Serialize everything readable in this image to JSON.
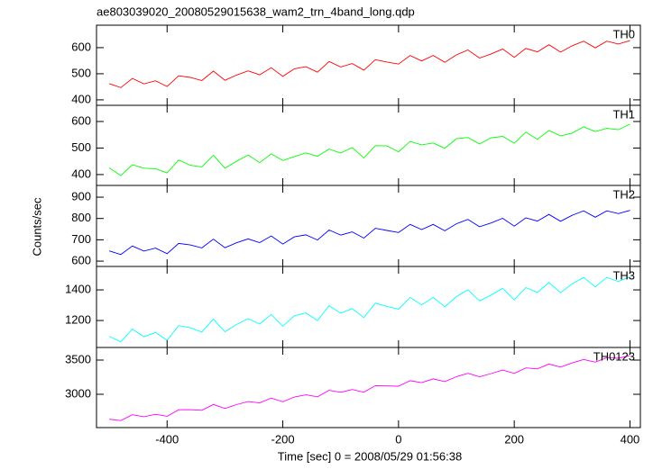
{
  "chart_data": [
    {
      "type": "line",
      "title": "ae803039020_20080529015638_wam2_trn_4band_long.qdp",
      "x": [
        -500,
        -480,
        -460,
        -440,
        -420,
        -400,
        -380,
        -360,
        -340,
        -320,
        -300,
        -280,
        -260,
        -240,
        -220,
        -200,
        -180,
        -160,
        -140,
        -120,
        -100,
        -80,
        -60,
        -40,
        -20,
        0,
        20,
        40,
        60,
        80,
        100,
        120,
        140,
        160,
        180,
        200,
        220,
        240,
        260,
        280,
        300,
        320,
        340,
        360,
        380,
        400
      ],
      "series": [
        {
          "name": "TH0",
          "color": "#ff0000",
          "values": [
            462,
            447,
            482,
            461,
            473,
            451,
            492,
            486,
            474,
            510,
            475,
            495,
            511,
            496,
            523,
            490,
            519,
            527,
            506,
            547,
            526,
            539,
            514,
            554,
            545,
            537,
            570,
            549,
            570,
            544,
            572,
            591,
            560,
            576,
            595,
            563,
            597,
            584,
            611,
            583,
            607,
            625,
            599,
            625,
            614,
            627
          ]
        }
      ],
      "xlim": [
        -522,
        418
      ],
      "xticks": [
        -400,
        -200,
        0,
        200,
        400
      ],
      "ylim": [
        379,
        686
      ],
      "yticks": [
        400,
        500,
        600
      ]
    },
    {
      "type": "line",
      "x": [
        -500,
        -480,
        -460,
        -440,
        -420,
        -400,
        -380,
        -360,
        -340,
        -320,
        -300,
        -280,
        -260,
        -240,
        -220,
        -200,
        -180,
        -160,
        -140,
        -120,
        -100,
        -80,
        -60,
        -40,
        -20,
        0,
        20,
        40,
        60,
        80,
        100,
        120,
        140,
        160,
        180,
        200,
        220,
        240,
        260,
        280,
        300,
        320,
        340,
        360,
        380,
        400
      ],
      "series": [
        {
          "name": "TH1",
          "color": "#00ff00",
          "values": [
            425,
            396,
            437,
            424,
            422,
            406,
            455,
            435,
            429,
            473,
            424,
            450,
            474,
            445,
            478,
            453,
            468,
            482,
            469,
            496,
            481,
            502,
            463,
            509,
            508,
            486,
            525,
            512,
            519,
            499,
            535,
            540,
            515,
            539,
            544,
            518,
            560,
            533,
            566,
            546,
            556,
            580,
            562,
            574,
            569,
            590
          ]
        }
      ],
      "xlim": [
        -522,
        418
      ],
      "xticks": [
        -400,
        -200,
        0,
        200,
        400
      ],
      "ylim": [
        359,
        661
      ],
      "yticks": [
        400,
        500,
        600
      ]
    },
    {
      "type": "line",
      "y_label": "Counts/sec",
      "x": [
        -500,
        -480,
        -460,
        -440,
        -420,
        -400,
        -380,
        -360,
        -340,
        -320,
        -300,
        -280,
        -260,
        -240,
        -220,
        -200,
        -180,
        -160,
        -140,
        -120,
        -100,
        -80,
        -60,
        -40,
        -20,
        0,
        20,
        40,
        60,
        80,
        100,
        120,
        140,
        160,
        180,
        200,
        220,
        240,
        260,
        280,
        300,
        320,
        340,
        360,
        380,
        400
      ],
      "series": [
        {
          "name": "TH2",
          "color": "#0000ff",
          "values": [
            648,
            631,
            671,
            647,
            661,
            635,
            683,
            676,
            662,
            703,
            663,
            686,
            704,
            687,
            718,
            680,
            714,
            723,
            699,
            746,
            722,
            737,
            708,
            754,
            744,
            734,
            772,
            748,
            772,
            742,
            775,
            796,
            761,
            779,
            801,
            764,
            803,
            788,
            819,
            787,
            815,
            836,
            806,
            836,
            823,
            838
          ]
        }
      ],
      "xlim": [
        -522,
        418
      ],
      "xticks": [
        -400,
        -200,
        0,
        200,
        400
      ],
      "ylim": [
        575,
        955
      ],
      "yticks": [
        600,
        700,
        800,
        900
      ]
    },
    {
      "type": "line",
      "x": [
        -500,
        -480,
        -460,
        -440,
        -420,
        -400,
        -380,
        -360,
        -340,
        -320,
        -300,
        -280,
        -260,
        -240,
        -220,
        -200,
        -180,
        -160,
        -140,
        -120,
        -100,
        -80,
        -60,
        -40,
        -20,
        0,
        20,
        40,
        60,
        80,
        100,
        120,
        140,
        160,
        180,
        200,
        220,
        240,
        260,
        280,
        300,
        320,
        340,
        360,
        380,
        400
      ],
      "series": [
        {
          "name": "TH3",
          "color": "#00ffff",
          "values": [
            1097,
            1061,
            1144,
            1094,
            1122,
            1071,
            1167,
            1153,
            1125,
            1210,
            1127,
            1174,
            1212,
            1177,
            1240,
            1163,
            1231,
            1250,
            1200,
            1297,
            1248,
            1278,
            1219,
            1314,
            1292,
            1274,
            1351,
            1302,
            1351,
            1290,
            1356,
            1401,
            1328,
            1366,
            1410,
            1335,
            1415,
            1384,
            1448,
            1382,
            1439,
            1481,
            1420,
            1481,
            1455,
            1486
          ]
        }
      ],
      "xlim": [
        -522,
        418
      ],
      "xticks": [
        -400,
        -200,
        0,
        200,
        400
      ],
      "ylim": [
        1024,
        1553
      ],
      "yticks": [
        1200,
        1400
      ]
    },
    {
      "type": "line",
      "x_label": "Time [sec] 0 = 2008/05/29 01:56:38",
      "x": [
        -500,
        -480,
        -460,
        -440,
        -420,
        -400,
        -380,
        -360,
        -340,
        -320,
        -300,
        -280,
        -260,
        -240,
        -220,
        -200,
        -180,
        -160,
        -140,
        -120,
        -100,
        -80,
        -60,
        -40,
        -20,
        0,
        20,
        40,
        60,
        80,
        100,
        120,
        140,
        160,
        180,
        200,
        220,
        240,
        260,
        280,
        300,
        320,
        340,
        360,
        380,
        400
      ],
      "series": [
        {
          "name": "TH0123",
          "color": "#ff00ff",
          "values": [
            2635,
            2616,
            2701,
            2672,
            2708,
            2679,
            2774,
            2775,
            2766,
            2851,
            2792,
            2848,
            2893,
            2874,
            2945,
            2891,
            2961,
            2992,
            2963,
            3058,
            3029,
            3070,
            3030,
            3126,
            3122,
            3118,
            3198,
            3169,
            3225,
            3185,
            3256,
            3307,
            3257,
            3303,
            3354,
            3305,
            3385,
            3371,
            3442,
            3397,
            3458,
            3509,
            3469,
            3535,
            3526,
            3567
          ]
        }
      ],
      "xlim": [
        -522,
        418
      ],
      "xticks": [
        -400,
        -200,
        0,
        200,
        400
      ],
      "ylim": [
        2513,
        3684
      ],
      "yticks": [
        3000,
        3500
      ]
    }
  ]
}
